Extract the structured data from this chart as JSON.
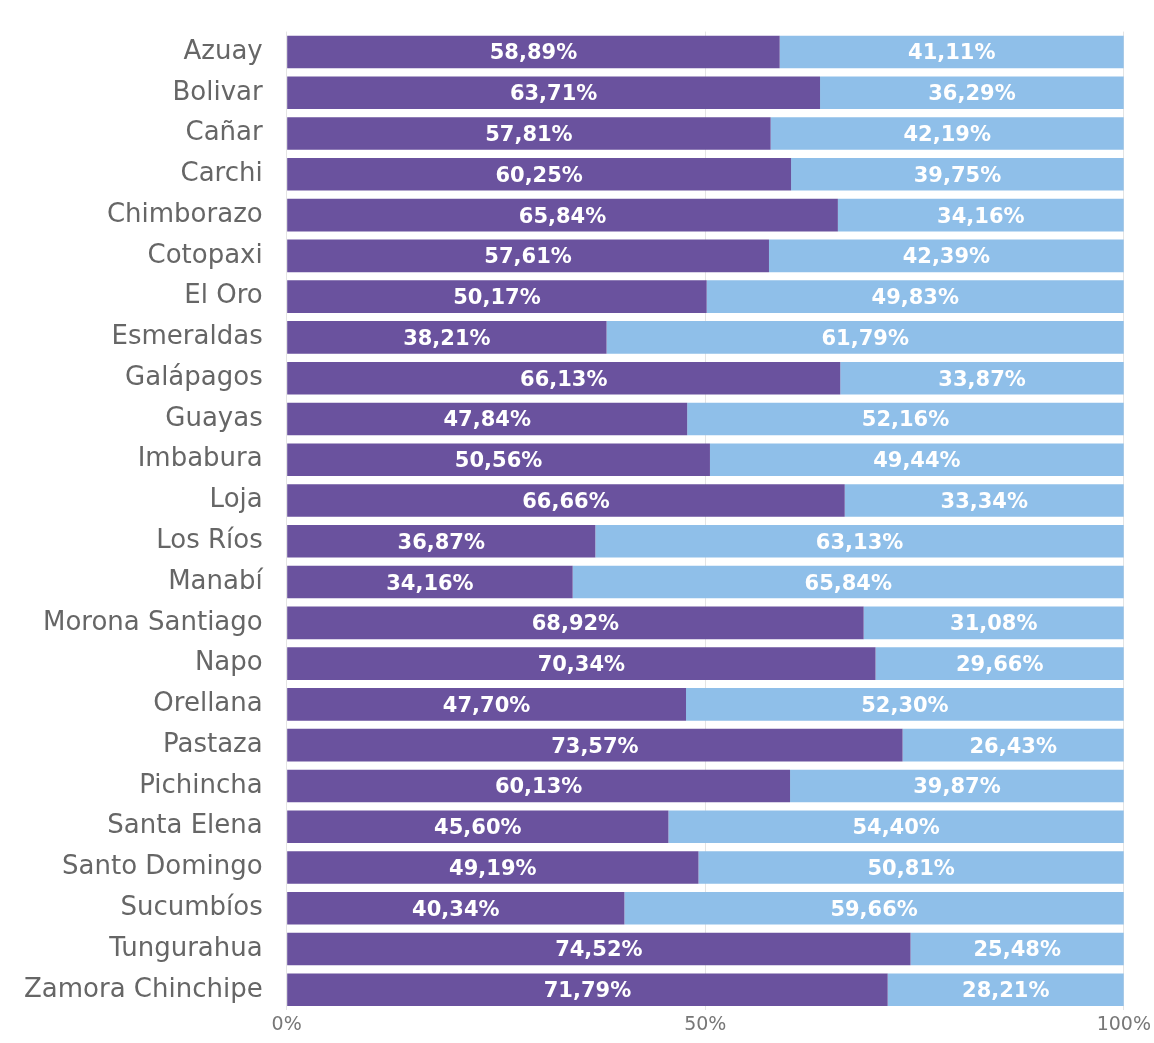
{
  "chart_data": {
    "type": "bar",
    "orientation": "horizontal",
    "stacked": true,
    "categories": [
      "Azuay",
      "Bolivar",
      "Cañar",
      "Carchi",
      "Chimborazo",
      "Cotopaxi",
      "El Oro",
      "Esmeraldas",
      "Galápagos",
      "Guayas",
      "Imbabura",
      "Loja",
      "Los Ríos",
      "Manabí",
      "Morona Santiago",
      "Napo",
      "Orellana",
      "Pastaza",
      "Pichincha",
      "Santa Elena",
      "Santo Domingo",
      "Sucumbíos",
      "Tungurahua",
      "Zamora Chinchipe"
    ],
    "series": [
      {
        "color": "#6a529e",
        "values": [
          58.89,
          63.71,
          57.81,
          60.25,
          65.84,
          57.61,
          50.17,
          38.21,
          66.13,
          47.84,
          50.56,
          66.66,
          36.87,
          34.16,
          68.92,
          70.34,
          47.7,
          73.57,
          60.13,
          45.6,
          49.19,
          40.34,
          74.52,
          71.79
        ],
        "value_labels": [
          "58,89%",
          "63,71%",
          "57,81%",
          "60,25%",
          "65,84%",
          "57,61%",
          "50,17%",
          "38,21%",
          "66,13%",
          "47,84%",
          "50,56%",
          "66,66%",
          "36,87%",
          "34,16%",
          "68,92%",
          "70,34%",
          "47,70%",
          "73,57%",
          "60,13%",
          "45,60%",
          "49,19%",
          "40,34%",
          "74,52%",
          "71,79%"
        ]
      },
      {
        "color": "#8fbfe9",
        "values": [
          41.11,
          36.29,
          42.19,
          39.75,
          34.16,
          42.39,
          49.83,
          61.79,
          33.87,
          52.16,
          49.44,
          33.34,
          63.13,
          65.84,
          31.08,
          29.66,
          52.3,
          26.43,
          39.87,
          54.4,
          50.81,
          59.66,
          25.48,
          28.21
        ],
        "value_labels": [
          "41,11%",
          "36,29%",
          "42,19%",
          "39,75%",
          "34,16%",
          "42,39%",
          "49,83%",
          "61,79%",
          "33,87%",
          "52,16%",
          "49,44%",
          "33,34%",
          "63,13%",
          "65,84%",
          "31,08%",
          "29,66%",
          "52,30%",
          "26,43%",
          "39,87%",
          "54,40%",
          "50,81%",
          "59,66%",
          "25,48%",
          "28,21%"
        ]
      }
    ],
    "xlim": [
      0,
      100
    ],
    "xticks": [
      {
        "value": 0,
        "label": "0%"
      },
      {
        "value": 50,
        "label": "50%"
      },
      {
        "value": 100,
        "label": "100%"
      }
    ],
    "grid": "x",
    "legend": false
  }
}
